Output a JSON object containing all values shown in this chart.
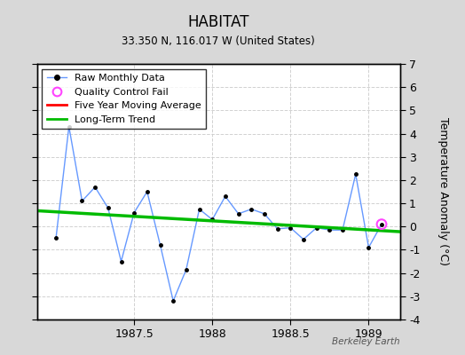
{
  "title": "HABITAT",
  "subtitle": "33.350 N, 116.017 W (United States)",
  "ylabel": "Temperature Anomaly (°C)",
  "watermark": "Berkeley Earth",
  "background_color": "#d8d8d8",
  "plot_bg_color": "#ffffff",
  "ylim": [
    -4,
    7
  ],
  "yticks": [
    -4,
    -3,
    -2,
    -1,
    0,
    1,
    2,
    3,
    4,
    5,
    6,
    7
  ],
  "xlim": [
    1986.88,
    1989.2
  ],
  "xticks": [
    1987.5,
    1988.0,
    1988.5,
    1989.0
  ],
  "xtick_labels": [
    "1987.5",
    "1988",
    "1988.5",
    "1989"
  ],
  "raw_x": [
    1987.0,
    1987.083,
    1987.167,
    1987.25,
    1987.333,
    1987.417,
    1987.5,
    1987.583,
    1987.667,
    1987.75,
    1987.833,
    1987.917,
    1988.0,
    1988.083,
    1988.167,
    1988.25,
    1988.333,
    1988.417,
    1988.5,
    1988.583,
    1988.667,
    1988.75,
    1988.833,
    1988.917,
    1989.0,
    1989.083
  ],
  "raw_y": [
    -0.5,
    4.3,
    1.1,
    1.7,
    0.8,
    -1.5,
    0.6,
    1.5,
    -0.8,
    -3.2,
    -1.85,
    0.75,
    0.3,
    1.3,
    0.55,
    0.75,
    0.55,
    -0.1,
    -0.05,
    -0.55,
    -0.05,
    -0.15,
    -0.15,
    2.25,
    -0.9,
    0.1
  ],
  "qc_fail_x": [
    1989.083
  ],
  "qc_fail_y": [
    0.1
  ],
  "trend_x": [
    1986.88,
    1989.2
  ],
  "trend_y": [
    0.68,
    -0.22
  ],
  "raw_line_color": "#6699ff",
  "raw_marker_color": "#000000",
  "trend_color": "#00bb00",
  "moving_avg_color": "#ff0000",
  "qc_color": "#ff44ff",
  "grid_color": "#cccccc",
  "grid_linestyle": "--"
}
